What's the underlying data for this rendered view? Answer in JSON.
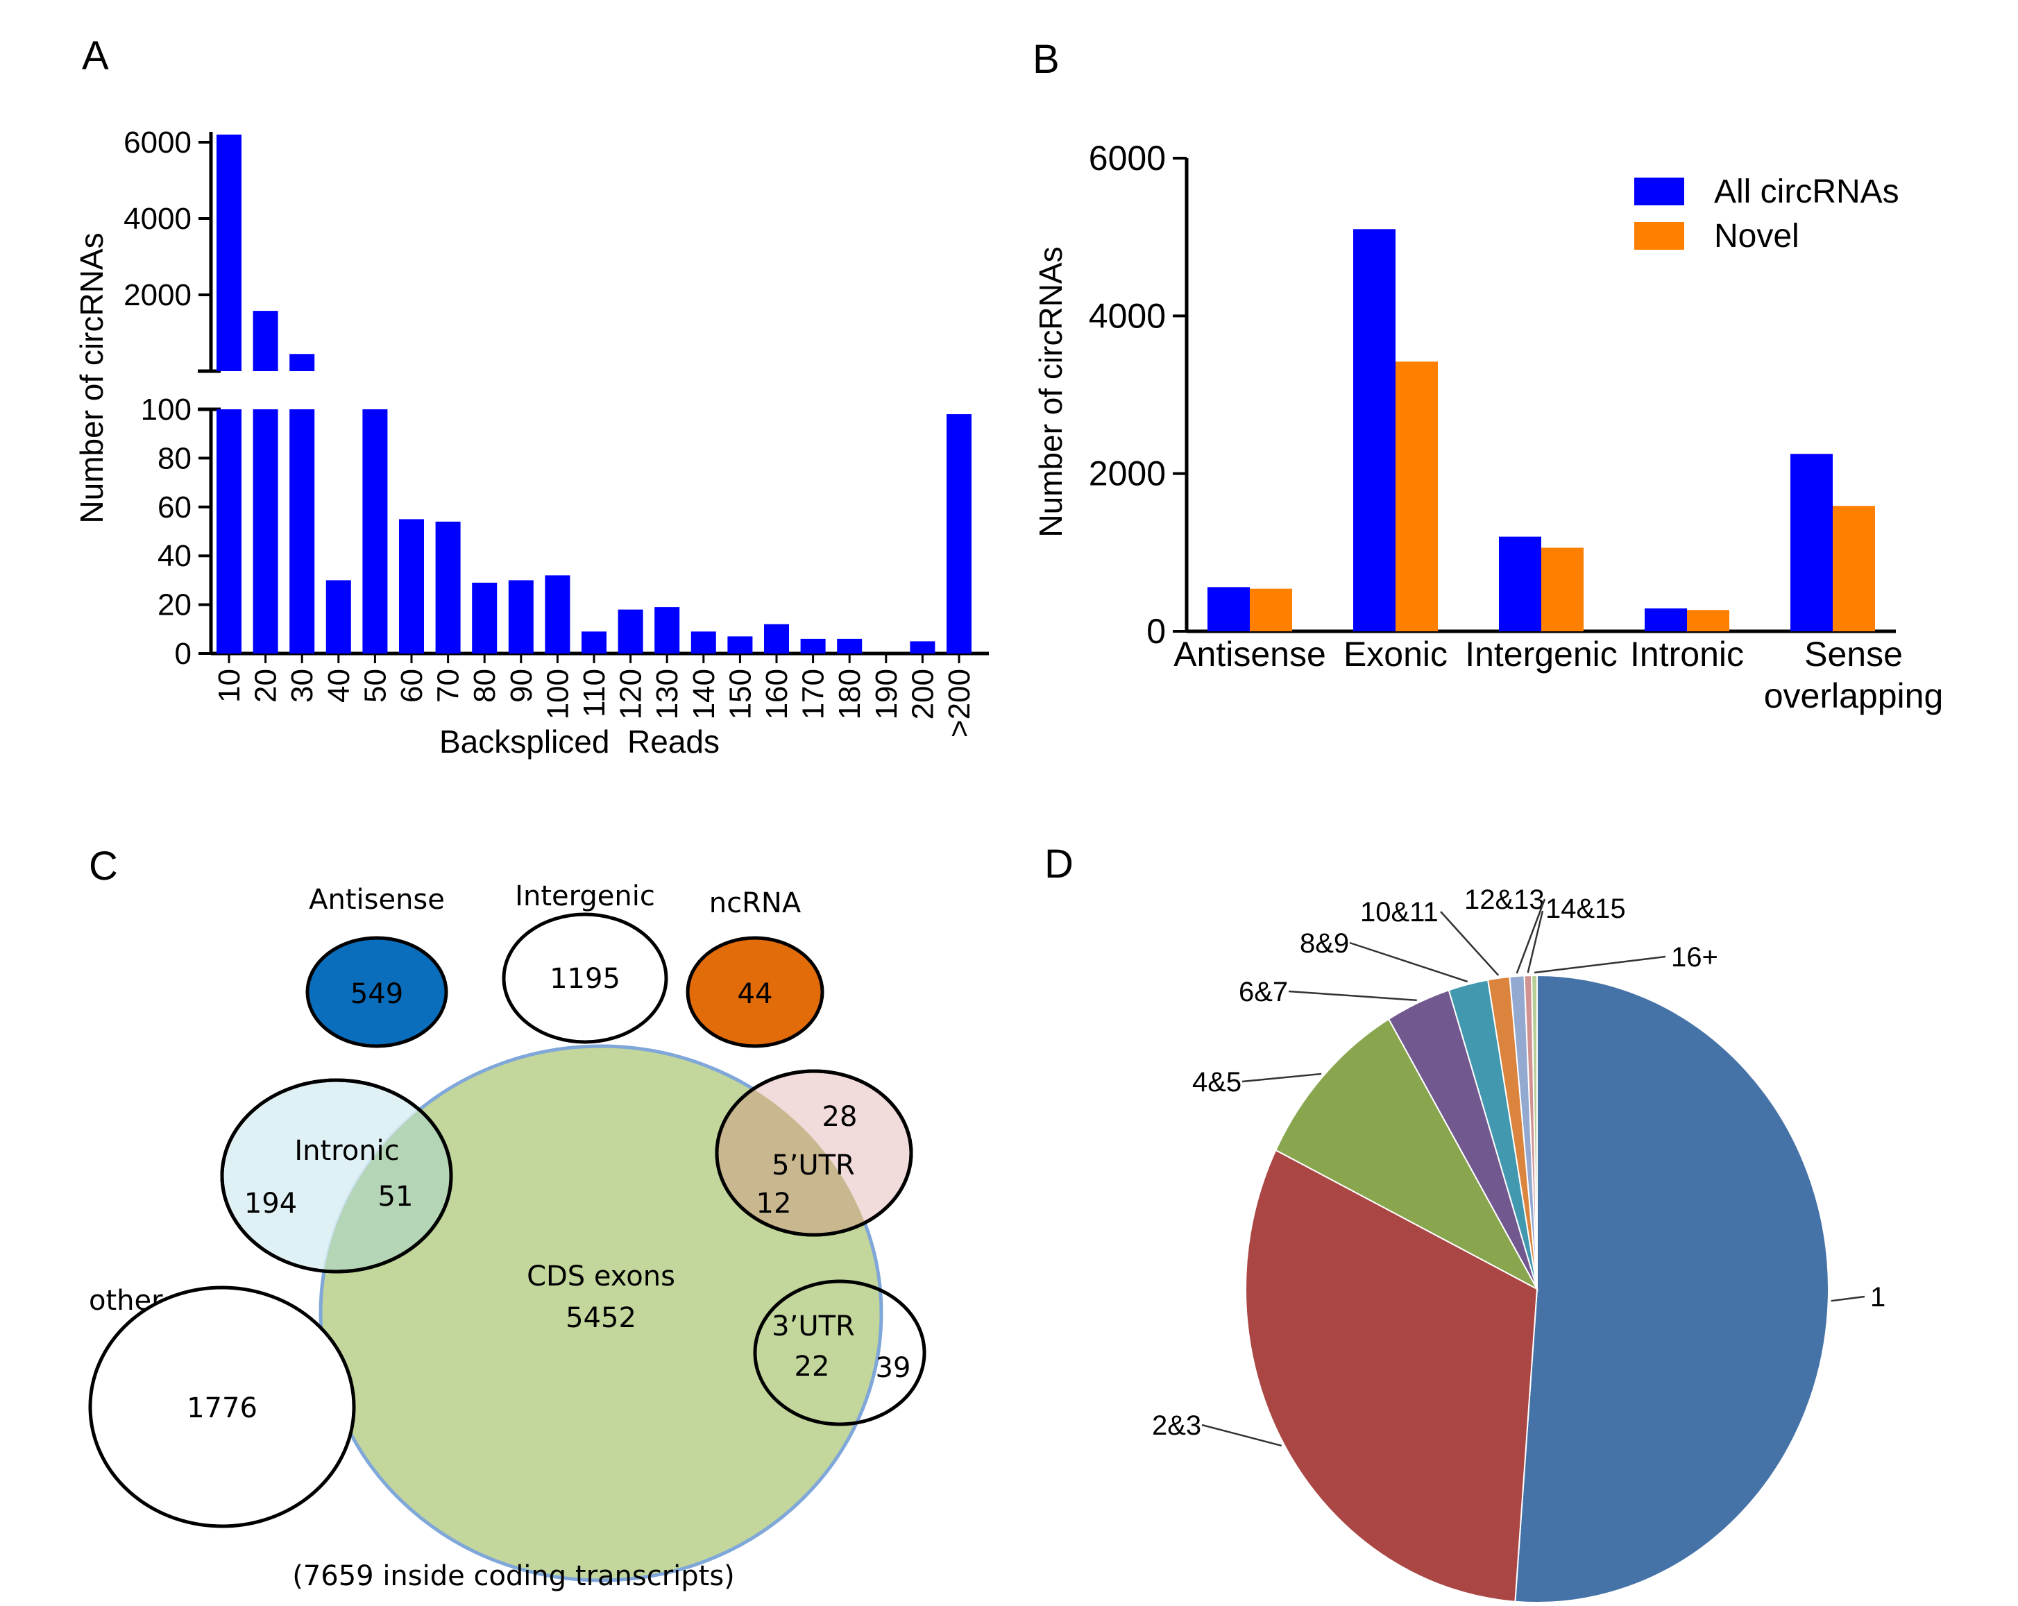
{
  "chart_data": [
    {
      "id": "A",
      "type": "bar",
      "panel_label": "A",
      "xlabel": "Backspliced  Reads",
      "ylabel": "Number of circRNAs",
      "categories": [
        "10",
        "20",
        "30",
        "40",
        "50",
        "60",
        "70",
        "80",
        "90",
        "100",
        "110",
        "120",
        "130",
        "140",
        "150",
        "160",
        "170",
        "180",
        "190",
        "200",
        ">200"
      ],
      "values": [
        6200,
        1580,
        450,
        30,
        100,
        55,
        54,
        29,
        30,
        32,
        9,
        18,
        19,
        9,
        7,
        12,
        6,
        6,
        0,
        5,
        98
      ],
      "ylim_lower": [
        0,
        100
      ],
      "ylim_upper": [
        0,
        6000
      ],
      "yticks_lower": [
        "0",
        "20",
        "40",
        "60",
        "80",
        "100"
      ],
      "yticks_upper": [
        "2000",
        "4000",
        "6000"
      ],
      "color": "#0000FF",
      "note": "broken y axis"
    },
    {
      "id": "B",
      "type": "bar",
      "panel_label": "B",
      "ylabel": "Number of circRNAs",
      "categories": [
        "Antisense",
        "Exonic",
        "Intergenic",
        "Intronic",
        "Sense overlapping"
      ],
      "category_lines": [
        [
          "Antisense"
        ],
        [
          "Exonic"
        ],
        [
          "Intergenic"
        ],
        [
          "Intronic"
        ],
        [
          "Sense",
          "overlapping"
        ]
      ],
      "series": [
        {
          "name": "All circRNAs",
          "color": "#0000FF",
          "values": [
            560,
            5100,
            1200,
            290,
            2250
          ]
        },
        {
          "name": "Novel",
          "color": "#FF7F00",
          "values": [
            540,
            3420,
            1060,
            270,
            1590
          ]
        }
      ],
      "ylim": [
        0,
        6000
      ],
      "yticks": [
        "0",
        "2000",
        "4000",
        "6000"
      ],
      "legend": "top-right"
    },
    {
      "id": "C",
      "type": "venn",
      "panel_label": "C",
      "sets": [
        {
          "name": "Antisense",
          "label": "Antisense",
          "count": "549",
          "color": "#0A6EBD"
        },
        {
          "name": "Intergenic",
          "label": "Intergenic",
          "count": "1195",
          "color": "#FFFFFF"
        },
        {
          "name": "ncRNA",
          "label": "ncRNA",
          "count": "44",
          "color": "#E36C0A"
        },
        {
          "name": "Intronic",
          "label": "Intronic",
          "only": "194",
          "overlap": "51",
          "color": "#DAEEF3"
        },
        {
          "name": "CDS exons",
          "label": "CDS exons",
          "count": "5452",
          "color": "#C3D69B"
        },
        {
          "name": "5'UTR",
          "label": "5’UTR",
          "only": "28",
          "overlap": "12",
          "color": "#F2DCDB"
        },
        {
          "name": "3'UTR",
          "label": "3’UTR",
          "overlap": "22",
          "only": "39",
          "color": "#FFFFFF"
        },
        {
          "name": "other",
          "label": "other",
          "count": "1776",
          "color": "#FFFFFF"
        }
      ],
      "footnote": "(7659 inside coding transcripts)"
    },
    {
      "id": "D",
      "type": "pie",
      "panel_label": "D",
      "labels": [
        "1",
        "2&3",
        "4&5",
        "6&7",
        "8&9",
        "10&11",
        "12&13",
        "14&15",
        "16+"
      ],
      "values": [
        51.2,
        31.1,
        9.2,
        3.6,
        2.2,
        1.2,
        0.8,
        0.4,
        0.3
      ],
      "colors": [
        "#4572A7",
        "#AA4643",
        "#89A54E",
        "#71588F",
        "#4198AF",
        "#DB843D",
        "#93A9CF",
        "#D19392",
        "#B9CD96"
      ]
    }
  ]
}
